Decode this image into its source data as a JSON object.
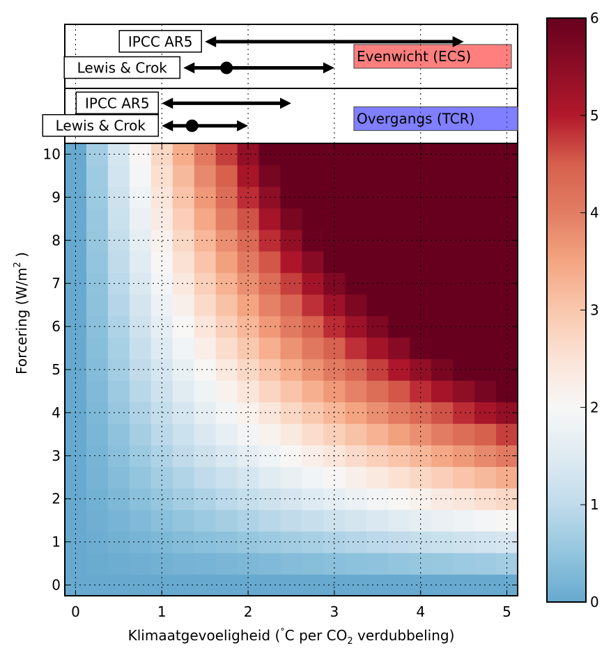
{
  "chart_data": {
    "type": "heatmap",
    "title": "",
    "xlabel": "Klimaatgevoeligheid (°C per CO2 verdubbeling)",
    "xlabel_parts": {
      "pre": "Klimaatgevoeligheid (",
      "degree": "°",
      "mid": "C per CO",
      "sub": "2",
      "post": " verdubbeling)"
    },
    "ylabel": "Forcering (W/m2)",
    "ylabel_parts": {
      "pre": "Forcering (W/m",
      "sup": "2",
      "post": " )"
    },
    "xlim": [
      -0.125,
      5.125
    ],
    "ylim": [
      -0.25,
      10.25
    ],
    "xticks": [
      0,
      1,
      2,
      3,
      4,
      5
    ],
    "yticks": [
      0,
      1,
      2,
      3,
      4,
      5,
      6,
      7,
      8,
      9,
      10
    ],
    "grid": true,
    "x": [
      0,
      0.25,
      0.5,
      0.75,
      1,
      1.25,
      1.5,
      1.75,
      2,
      2.25,
      2.5,
      2.75,
      3,
      3.25,
      3.5,
      3.75,
      4,
      4.25,
      4.5,
      4.75,
      5
    ],
    "y": [
      0,
      0.5,
      1,
      1.5,
      2,
      2.5,
      3,
      3.5,
      4,
      4.5,
      5,
      5.5,
      6,
      6.5,
      7,
      7.5,
      8,
      8.5,
      9,
      9.5,
      10
    ],
    "values": [
      [
        0,
        0,
        0,
        0,
        0,
        0,
        0,
        0,
        0,
        0,
        0,
        0,
        0,
        0,
        0,
        0,
        0,
        0,
        0,
        0,
        0
      ],
      [
        0,
        0.03,
        0.07,
        0.1,
        0.14,
        0.17,
        0.2,
        0.24,
        0.27,
        0.3,
        0.34,
        0.37,
        0.41,
        0.44,
        0.47,
        0.51,
        0.54,
        0.57,
        0.61,
        0.64,
        0.68
      ],
      [
        0,
        0.07,
        0.14,
        0.2,
        0.27,
        0.34,
        0.41,
        0.47,
        0.54,
        0.61,
        0.68,
        0.74,
        0.81,
        0.88,
        0.95,
        1.01,
        1.08,
        1.15,
        1.22,
        1.28,
        1.35
      ],
      [
        0,
        0.1,
        0.2,
        0.3,
        0.41,
        0.51,
        0.61,
        0.71,
        0.81,
        0.91,
        1.01,
        1.11,
        1.22,
        1.32,
        1.42,
        1.52,
        1.62,
        1.72,
        1.82,
        1.93,
        2.03
      ],
      [
        0,
        0.14,
        0.27,
        0.41,
        0.54,
        0.68,
        0.81,
        0.95,
        1.08,
        1.22,
        1.35,
        1.49,
        1.62,
        1.76,
        1.89,
        2.03,
        2.16,
        2.3,
        2.43,
        2.57,
        2.7
      ],
      [
        0,
        0.17,
        0.34,
        0.51,
        0.68,
        0.84,
        1.01,
        1.18,
        1.35,
        1.52,
        1.69,
        1.86,
        2.03,
        2.2,
        2.36,
        2.53,
        2.7,
        2.87,
        3.04,
        3.21,
        3.38
      ],
      [
        0,
        0.2,
        0.41,
        0.61,
        0.81,
        1.01,
        1.22,
        1.42,
        1.62,
        1.82,
        2.03,
        2.23,
        2.43,
        2.64,
        2.84,
        3.04,
        3.24,
        3.45,
        3.65,
        3.85,
        4.05
      ],
      [
        0,
        0.24,
        0.47,
        0.71,
        0.95,
        1.18,
        1.42,
        1.66,
        1.89,
        2.13,
        2.36,
        2.6,
        2.84,
        3.07,
        3.31,
        3.55,
        3.78,
        4.02,
        4.26,
        4.49,
        4.73
      ],
      [
        0,
        0.27,
        0.54,
        0.81,
        1.08,
        1.35,
        1.62,
        1.89,
        2.16,
        2.43,
        2.7,
        2.97,
        3.24,
        3.51,
        3.78,
        4.05,
        4.32,
        4.59,
        4.86,
        5.14,
        5.41
      ],
      [
        0,
        0.3,
        0.61,
        0.91,
        1.22,
        1.52,
        1.82,
        2.13,
        2.43,
        2.74,
        3.04,
        3.34,
        3.65,
        3.95,
        4.26,
        4.56,
        4.86,
        5.17,
        5.47,
        5.78,
        6
      ],
      [
        0,
        0.34,
        0.68,
        1.01,
        1.35,
        1.69,
        2.03,
        2.36,
        2.7,
        3.04,
        3.38,
        3.72,
        4.05,
        4.39,
        4.73,
        5.07,
        5.41,
        5.74,
        6,
        6,
        6
      ],
      [
        0,
        0.37,
        0.74,
        1.11,
        1.49,
        1.86,
        2.23,
        2.6,
        2.97,
        3.34,
        3.72,
        4.09,
        4.46,
        4.83,
        5.2,
        5.57,
        5.95,
        6,
        6,
        6,
        6
      ],
      [
        0,
        0.41,
        0.81,
        1.22,
        1.62,
        2.03,
        2.43,
        2.84,
        3.24,
        3.65,
        4.05,
        4.46,
        4.86,
        5.27,
        5.68,
        6,
        6,
        6,
        6,
        6,
        6
      ],
      [
        0,
        0.44,
        0.88,
        1.32,
        1.76,
        2.2,
        2.64,
        3.07,
        3.51,
        3.95,
        4.39,
        4.83,
        5.27,
        5.71,
        6,
        6,
        6,
        6,
        6,
        6,
        6
      ],
      [
        0,
        0.47,
        0.95,
        1.42,
        1.89,
        2.36,
        2.84,
        3.31,
        3.78,
        4.26,
        4.73,
        5.2,
        5.68,
        6,
        6,
        6,
        6,
        6,
        6,
        6,
        6
      ],
      [
        0,
        0.51,
        1.01,
        1.52,
        2.03,
        2.53,
        3.04,
        3.55,
        4.05,
        4.56,
        5.07,
        5.57,
        6,
        6,
        6,
        6,
        6,
        6,
        6,
        6,
        6
      ],
      [
        0,
        0.54,
        1.08,
        1.62,
        2.16,
        2.7,
        3.24,
        3.78,
        4.32,
        4.86,
        5.41,
        5.95,
        6,
        6,
        6,
        6,
        6,
        6,
        6,
        6,
        6
      ],
      [
        0,
        0.57,
        1.15,
        1.72,
        2.3,
        2.87,
        3.45,
        4.02,
        4.59,
        5.17,
        5.74,
        6,
        6,
        6,
        6,
        6,
        6,
        6,
        6,
        6,
        6
      ],
      [
        0,
        0.61,
        1.22,
        1.82,
        2.43,
        3.04,
        3.65,
        4.26,
        4.86,
        5.47,
        6,
        6,
        6,
        6,
        6,
        6,
        6,
        6,
        6,
        6,
        6
      ],
      [
        0,
        0.64,
        1.28,
        1.93,
        2.57,
        3.21,
        3.85,
        4.49,
        5.14,
        5.78,
        6,
        6,
        6,
        6,
        6,
        6,
        6,
        6,
        6,
        6,
        6
      ],
      [
        0,
        0.68,
        1.35,
        2.03,
        2.7,
        3.38,
        4.05,
        4.73,
        5.41,
        6,
        6,
        6,
        6,
        6,
        6,
        6,
        6,
        6,
        6,
        6,
        6
      ]
    ],
    "colorbar": {
      "range": [
        0,
        6
      ],
      "ticks": [
        0,
        1,
        2,
        3,
        4,
        5,
        6
      ],
      "colormap": "RdBu_r (upper portion)",
      "stops": [
        {
          "v": 0,
          "color": "#67a9cf"
        },
        {
          "v": 0.5,
          "color": "#92c5de"
        },
        {
          "v": 1,
          "color": "#c0dbeb"
        },
        {
          "v": 1.5,
          "color": "#dfebf2"
        },
        {
          "v": 2,
          "color": "#f7f7f7"
        },
        {
          "v": 2.5,
          "color": "#fbe3d6"
        },
        {
          "v": 3,
          "color": "#f9c7ad"
        },
        {
          "v": 3.5,
          "color": "#f4a582"
        },
        {
          "v": 4,
          "color": "#e27d63"
        },
        {
          "v": 4.5,
          "color": "#d6604d"
        },
        {
          "v": 5,
          "color": "#b2182b"
        },
        {
          "v": 5.5,
          "color": "#8c0d25"
        },
        {
          "v": 6,
          "color": "#67001f"
        }
      ]
    },
    "panels": [
      {
        "name": "ecs",
        "label": "Evenwicht (ECS)",
        "label_color": "#ff7f7f",
        "ranges": [
          {
            "label": "IPCC AR5",
            "low": 1.5,
            "high": 4.5,
            "best": null
          },
          {
            "label": "Lewis & Crok",
            "low": 1.25,
            "high": 3.0,
            "best": 1.75
          }
        ]
      },
      {
        "name": "tcr",
        "label": "Overgangs (TCR)",
        "label_color": "#7f7fff",
        "ranges": [
          {
            "label": "IPCC AR5",
            "low": 1.0,
            "high": 2.5,
            "best": null
          },
          {
            "label": "Lewis & Crok",
            "low": 1.0,
            "high": 2.0,
            "best": 1.35
          }
        ]
      }
    ]
  }
}
